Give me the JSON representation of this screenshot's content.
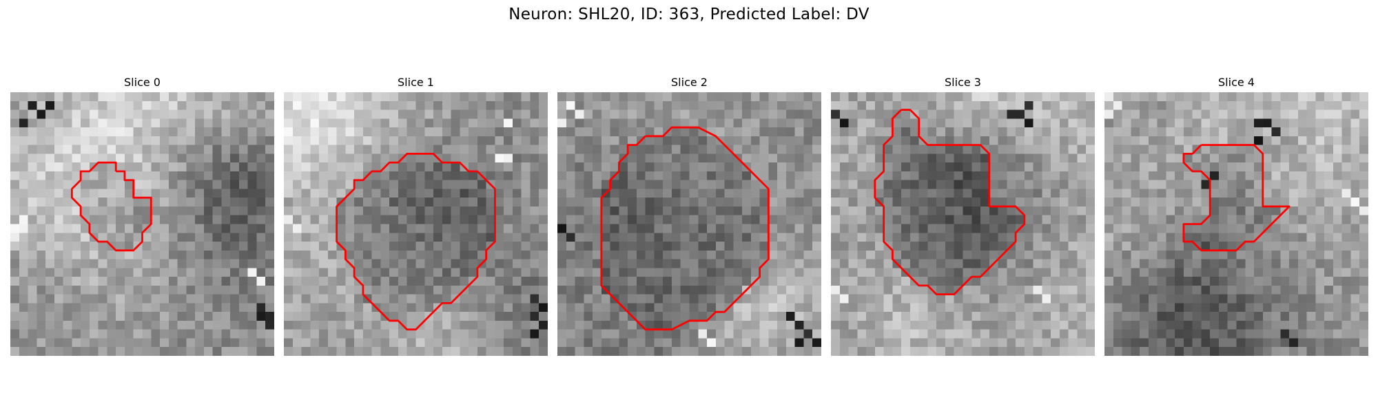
{
  "figure": {
    "title": "Neuron: SHL20, ID: 363, Predicted Label: DV"
  },
  "contour_color": "#ff0000",
  "panels": [
    {
      "title": "Slice 0",
      "contour": [
        [
          12,
          9
        ],
        [
          13,
          9
        ],
        [
          13,
          10
        ],
        [
          14,
          10
        ],
        [
          14,
          11
        ],
        [
          14,
          12
        ],
        [
          15,
          12
        ],
        [
          16,
          12
        ],
        [
          16,
          13
        ],
        [
          16,
          14
        ],
        [
          16,
          15
        ],
        [
          15,
          16
        ],
        [
          15,
          17
        ],
        [
          14,
          18
        ],
        [
          13,
          18
        ],
        [
          12,
          18
        ],
        [
          11,
          17
        ],
        [
          10,
          17
        ],
        [
          9,
          16
        ],
        [
          9,
          15
        ],
        [
          8,
          14
        ],
        [
          8,
          13
        ],
        [
          7,
          12
        ],
        [
          7,
          11
        ],
        [
          8,
          10
        ],
        [
          8,
          9
        ],
        [
          9,
          9
        ],
        [
          10,
          8
        ],
        [
          11,
          8
        ],
        [
          12,
          8
        ]
      ],
      "bright_spots": [
        [
          0,
          15
        ],
        [
          1,
          15
        ],
        [
          0,
          16
        ],
        [
          1,
          14
        ],
        [
          27,
          20
        ],
        [
          28,
          21
        ]
      ],
      "dark_spots": [
        [
          28,
          24
        ],
        [
          29,
          25
        ],
        [
          29,
          26
        ],
        [
          28,
          25
        ],
        [
          2,
          1
        ],
        [
          3,
          2
        ],
        [
          4,
          1
        ],
        [
          1,
          3
        ]
      ]
    },
    {
      "title": "Slice 1",
      "contour": [
        [
          16,
          7
        ],
        [
          17,
          7
        ],
        [
          18,
          8
        ],
        [
          19,
          8
        ],
        [
          20,
          8
        ],
        [
          21,
          9
        ],
        [
          22,
          9
        ],
        [
          23,
          10
        ],
        [
          24,
          11
        ],
        [
          24,
          12
        ],
        [
          24,
          13
        ],
        [
          24,
          14
        ],
        [
          24,
          15
        ],
        [
          24,
          16
        ],
        [
          24,
          17
        ],
        [
          23,
          18
        ],
        [
          23,
          19
        ],
        [
          22,
          20
        ],
        [
          22,
          21
        ],
        [
          21,
          22
        ],
        [
          20,
          23
        ],
        [
          19,
          24
        ],
        [
          18,
          24
        ],
        [
          17,
          25
        ],
        [
          16,
          26
        ],
        [
          15,
          27
        ],
        [
          14,
          27
        ],
        [
          13,
          26
        ],
        [
          12,
          26
        ],
        [
          11,
          25
        ],
        [
          10,
          24
        ],
        [
          9,
          23
        ],
        [
          9,
          22
        ],
        [
          8,
          21
        ],
        [
          8,
          20
        ],
        [
          7,
          19
        ],
        [
          7,
          18
        ],
        [
          6,
          17
        ],
        [
          6,
          16
        ],
        [
          6,
          15
        ],
        [
          6,
          14
        ],
        [
          6,
          13
        ],
        [
          7,
          12
        ],
        [
          8,
          11
        ],
        [
          8,
          10
        ],
        [
          9,
          10
        ],
        [
          10,
          9
        ],
        [
          11,
          9
        ],
        [
          12,
          8
        ],
        [
          13,
          8
        ],
        [
          14,
          7
        ],
        [
          15,
          7
        ]
      ],
      "bright_spots": [
        [
          24,
          7
        ],
        [
          25,
          7
        ],
        [
          0,
          14
        ],
        [
          1,
          15
        ],
        [
          25,
          3
        ]
      ],
      "dark_spots": [
        [
          28,
          23
        ],
        [
          29,
          24
        ],
        [
          28,
          25
        ],
        [
          29,
          26
        ],
        [
          28,
          27
        ]
      ]
    },
    {
      "title": "Slice 2",
      "contour": [
        [
          10,
          5
        ],
        [
          12,
          5
        ],
        [
          13,
          4
        ],
        [
          16,
          4
        ],
        [
          18,
          5
        ],
        [
          19,
          6
        ],
        [
          20,
          7
        ],
        [
          21,
          8
        ],
        [
          22,
          9
        ],
        [
          23,
          10
        ],
        [
          24,
          11
        ],
        [
          24,
          13
        ],
        [
          24,
          15
        ],
        [
          24,
          17
        ],
        [
          24,
          19
        ],
        [
          23,
          20
        ],
        [
          23,
          21
        ],
        [
          22,
          22
        ],
        [
          21,
          23
        ],
        [
          20,
          24
        ],
        [
          19,
          25
        ],
        [
          18,
          25
        ],
        [
          17,
          26
        ],
        [
          15,
          26
        ],
        [
          13,
          27
        ],
        [
          10,
          27
        ],
        [
          9,
          26
        ],
        [
          8,
          25
        ],
        [
          7,
          24
        ],
        [
          6,
          23
        ],
        [
          5,
          22
        ],
        [
          5,
          20
        ],
        [
          5,
          18
        ],
        [
          5,
          16
        ],
        [
          5,
          14
        ],
        [
          5,
          12
        ],
        [
          6,
          11
        ],
        [
          6,
          10
        ],
        [
          7,
          9
        ],
        [
          7,
          8
        ],
        [
          8,
          7
        ],
        [
          8,
          6
        ],
        [
          9,
          6
        ]
      ],
      "bright_spots": [
        [
          1,
          1
        ],
        [
          2,
          2
        ],
        [
          16,
          27
        ],
        [
          17,
          28
        ],
        [
          0,
          3
        ]
      ],
      "dark_spots": [
        [
          26,
          25
        ],
        [
          27,
          26
        ],
        [
          28,
          27
        ],
        [
          29,
          28
        ],
        [
          27,
          28
        ],
        [
          0,
          15
        ],
        [
          1,
          16
        ]
      ]
    },
    {
      "title": "Slice 3",
      "contour": [
        [
          8,
          2
        ],
        [
          9,
          2
        ],
        [
          10,
          3
        ],
        [
          10,
          4
        ],
        [
          10,
          5
        ],
        [
          11,
          6
        ],
        [
          12,
          6
        ],
        [
          13,
          6
        ],
        [
          14,
          6
        ],
        [
          15,
          6
        ],
        [
          16,
          6
        ],
        [
          17,
          6
        ],
        [
          18,
          7
        ],
        [
          18,
          8
        ],
        [
          18,
          9
        ],
        [
          18,
          10
        ],
        [
          18,
          11
        ],
        [
          18,
          12
        ],
        [
          18,
          13
        ],
        [
          19,
          13
        ],
        [
          20,
          13
        ],
        [
          21,
          13
        ],
        [
          22,
          14
        ],
        [
          22,
          15
        ],
        [
          21,
          16
        ],
        [
          21,
          17
        ],
        [
          20,
          18
        ],
        [
          19,
          19
        ],
        [
          18,
          20
        ],
        [
          17,
          21
        ],
        [
          16,
          21
        ],
        [
          15,
          22
        ],
        [
          14,
          23
        ],
        [
          13,
          23
        ],
        [
          12,
          23
        ],
        [
          11,
          22
        ],
        [
          10,
          22
        ],
        [
          9,
          21
        ],
        [
          8,
          20
        ],
        [
          7,
          19
        ],
        [
          7,
          18
        ],
        [
          6,
          17
        ],
        [
          6,
          16
        ],
        [
          6,
          15
        ],
        [
          6,
          14
        ],
        [
          6,
          13
        ],
        [
          5,
          12
        ],
        [
          5,
          11
        ],
        [
          5,
          10
        ],
        [
          6,
          9
        ],
        [
          6,
          8
        ],
        [
          6,
          7
        ],
        [
          6,
          6
        ],
        [
          7,
          5
        ],
        [
          7,
          4
        ],
        [
          7,
          3
        ]
      ],
      "bright_spots": [
        [
          23,
          22
        ],
        [
          24,
          23
        ],
        [
          0,
          22
        ],
        [
          1,
          23
        ]
      ],
      "dark_spots": [
        [
          20,
          2
        ],
        [
          21,
          2
        ],
        [
          22,
          1
        ],
        [
          22,
          3
        ],
        [
          0,
          2
        ],
        [
          1,
          3
        ]
      ]
    },
    {
      "title": "Slice 4",
      "contour": [
        [
          11,
          6
        ],
        [
          12,
          6
        ],
        [
          13,
          6
        ],
        [
          14,
          6
        ],
        [
          15,
          6
        ],
        [
          16,
          6
        ],
        [
          17,
          6
        ],
        [
          18,
          7
        ],
        [
          18,
          8
        ],
        [
          18,
          9
        ],
        [
          18,
          10
        ],
        [
          18,
          11
        ],
        [
          18,
          12
        ],
        [
          18,
          13
        ],
        [
          19,
          13
        ],
        [
          20,
          13
        ],
        [
          21,
          13
        ],
        [
          20,
          14
        ],
        [
          19,
          15
        ],
        [
          18,
          16
        ],
        [
          17,
          17
        ],
        [
          16,
          17
        ],
        [
          15,
          18
        ],
        [
          14,
          18
        ],
        [
          13,
          18
        ],
        [
          12,
          18
        ],
        [
          11,
          18
        ],
        [
          10,
          17
        ],
        [
          9,
          17
        ],
        [
          9,
          16
        ],
        [
          9,
          15
        ],
        [
          10,
          15
        ],
        [
          11,
          15
        ],
        [
          12,
          14
        ],
        [
          12,
          13
        ],
        [
          12,
          12
        ],
        [
          12,
          11
        ],
        [
          12,
          10
        ],
        [
          11,
          9
        ],
        [
          10,
          9
        ],
        [
          9,
          8
        ],
        [
          9,
          7
        ],
        [
          10,
          7
        ]
      ],
      "bright_spots": [
        [
          0,
          0
        ],
        [
          1,
          1
        ],
        [
          0,
          2
        ],
        [
          28,
          12
        ],
        [
          29,
          13
        ],
        [
          27,
          11
        ]
      ],
      "dark_spots": [
        [
          17,
          3
        ],
        [
          18,
          3
        ],
        [
          19,
          4
        ],
        [
          17,
          5
        ],
        [
          11,
          10
        ],
        [
          12,
          9
        ],
        [
          20,
          27
        ],
        [
          21,
          28
        ]
      ]
    }
  ]
}
